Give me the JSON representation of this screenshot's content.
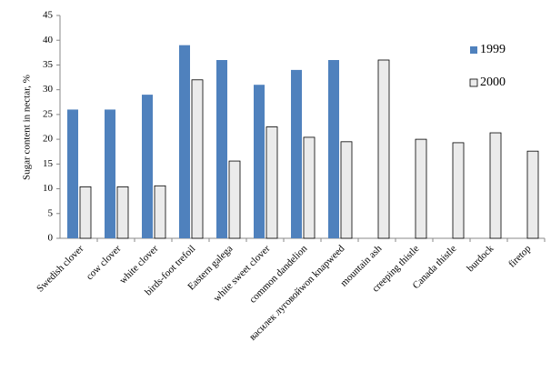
{
  "chart_data": {
    "type": "bar",
    "y_label": "Sugar content in nectar, %",
    "categories": [
      "Swedish clover",
      "cow clover",
      "white clover",
      "birds-foot trefoil",
      "Eastern galega",
      "white sweet clover",
      "common dandelion",
      "василек луговойwon knapweed",
      "mountain ash",
      "creeping thistle",
      "Canada thistle",
      "burdock",
      "firetop"
    ],
    "series": [
      {
        "name": "1999",
        "color": "#4f81bd",
        "values": [
          26,
          26,
          29,
          39,
          36,
          31,
          34,
          36,
          null,
          null,
          null,
          null,
          null
        ]
      },
      {
        "name": "2000",
        "color": "#ebebeb",
        "values": [
          10.4,
          10.4,
          10.6,
          32,
          15.6,
          22.5,
          20.4,
          19.5,
          36,
          20,
          19.3,
          21.3,
          17.6
        ]
      }
    ],
    "ylim": [
      0,
      45
    ],
    "yticks": [
      0,
      5,
      10,
      15,
      20,
      25,
      30,
      35,
      40,
      45
    ],
    "grid": false,
    "legend": "right"
  }
}
